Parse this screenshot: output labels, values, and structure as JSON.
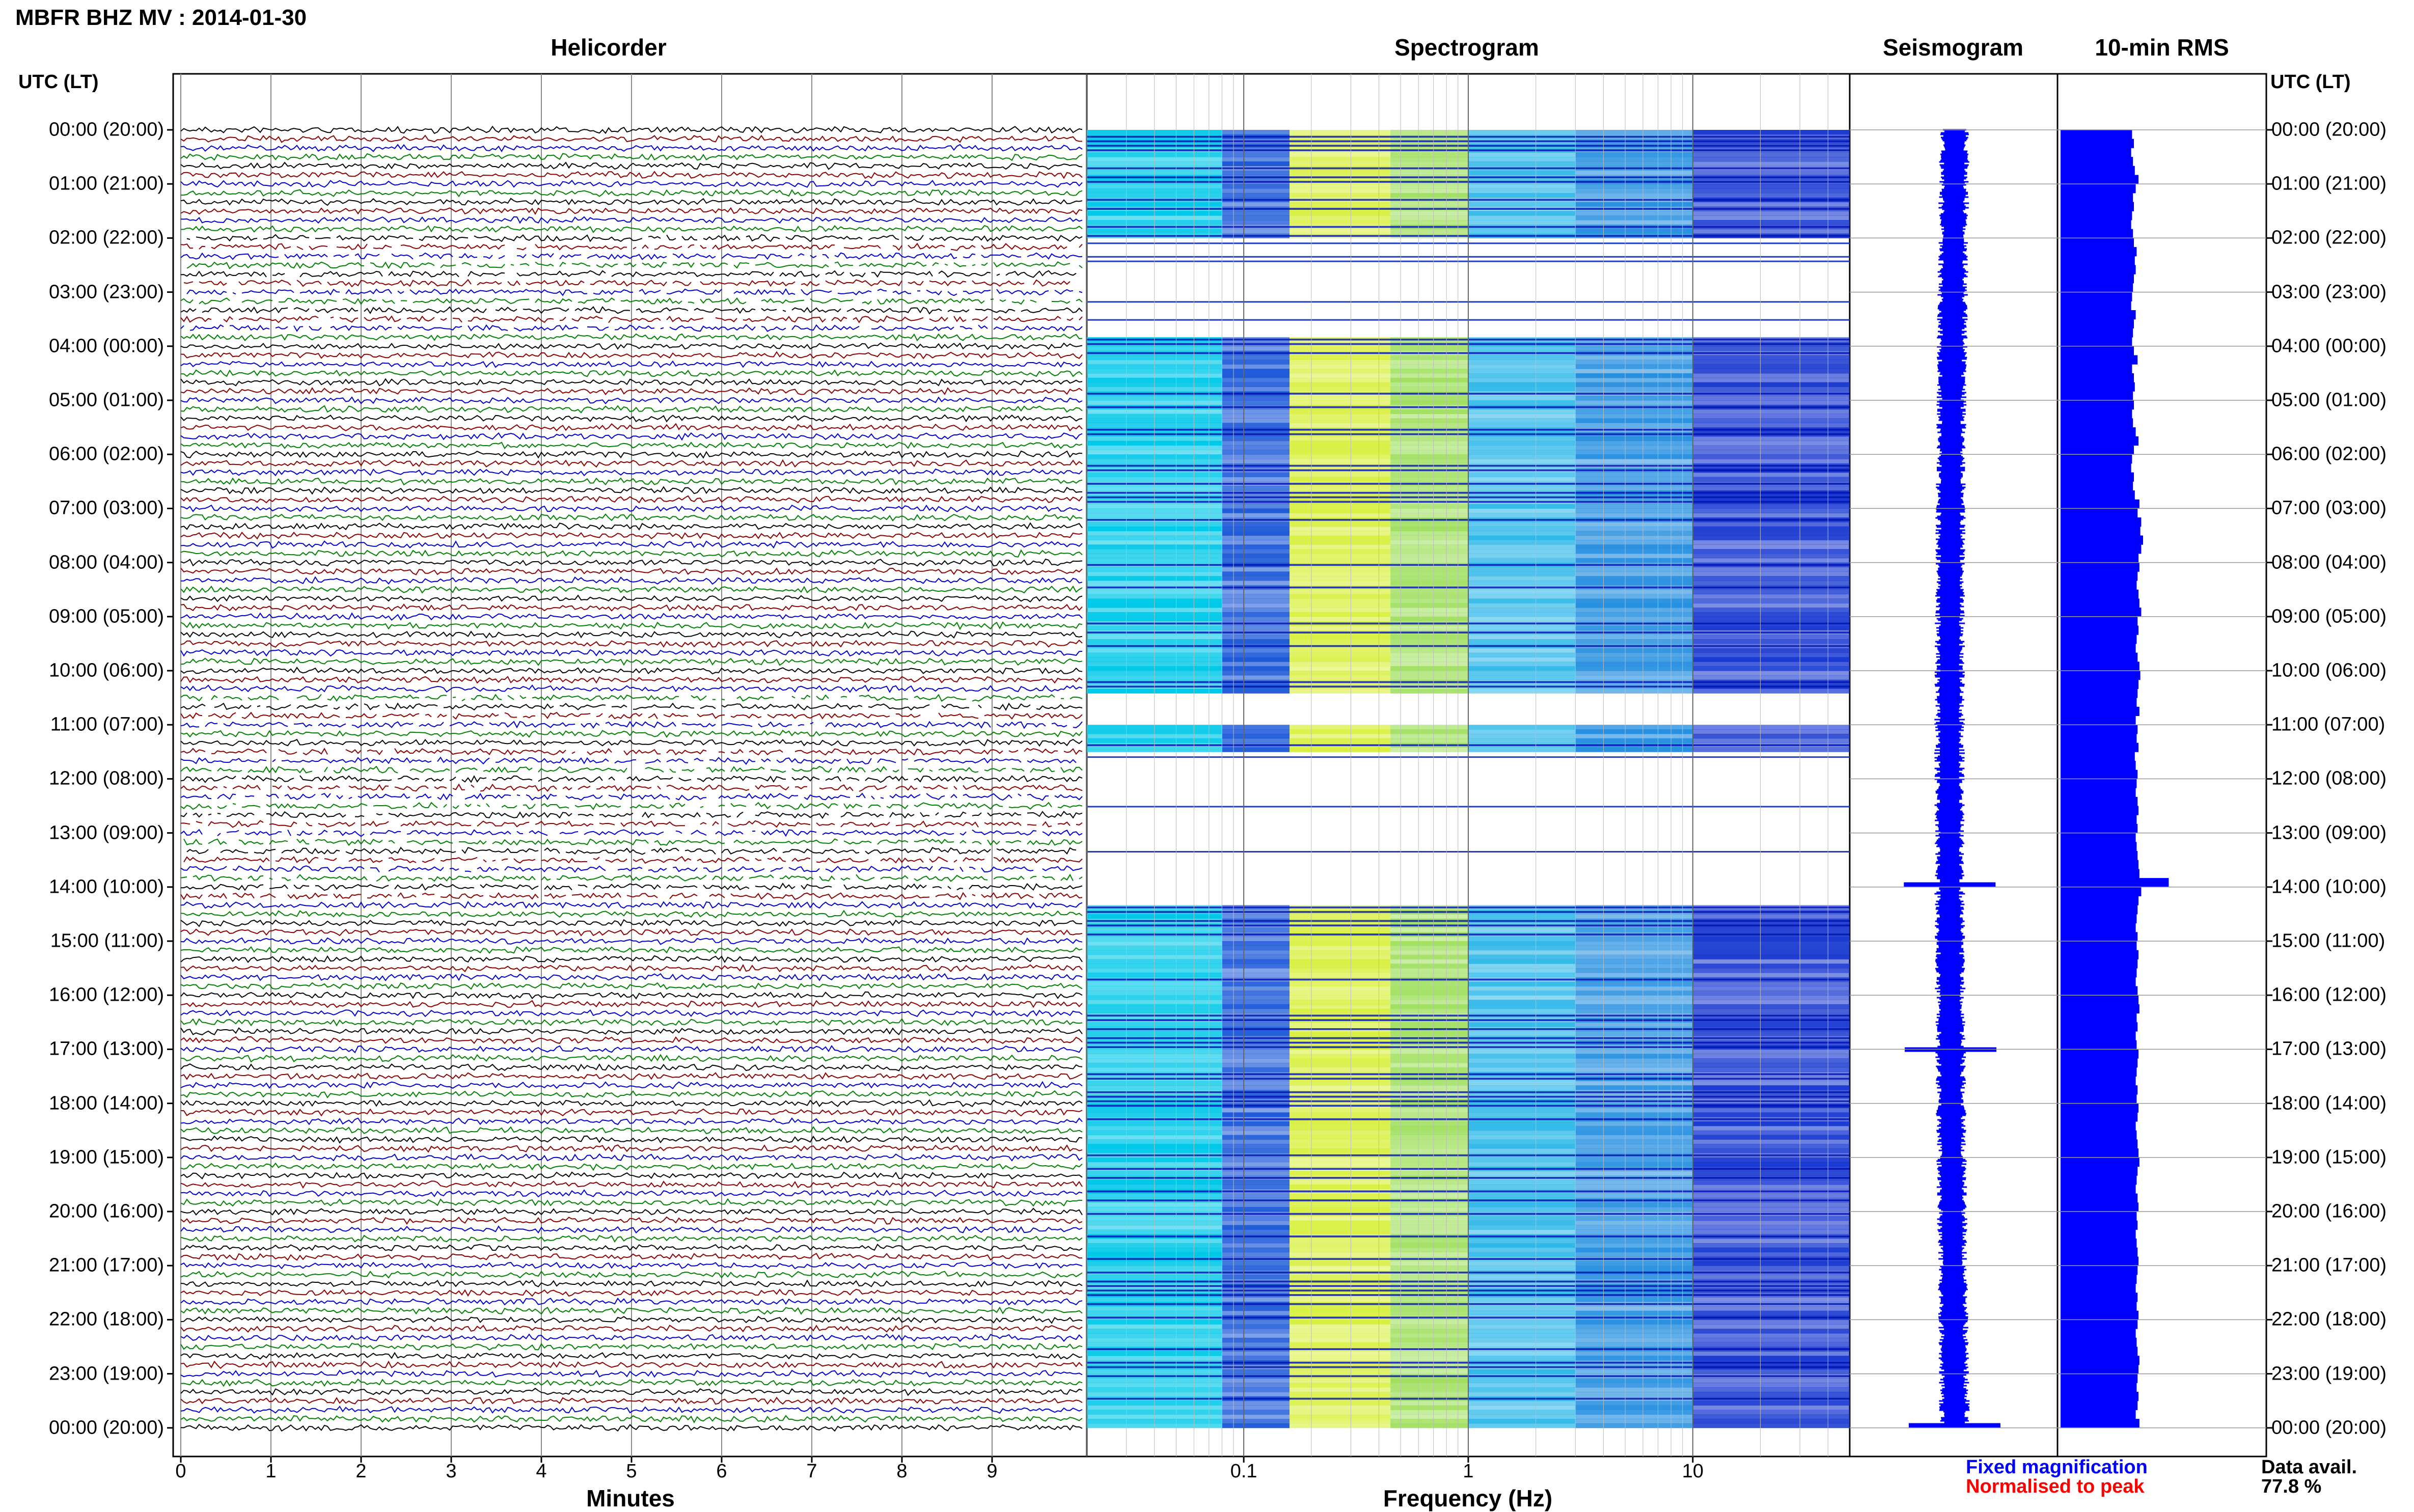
{
  "header": {
    "station": "MBFR BHZ MV : 2014-01-30",
    "panel_titles": [
      "Helicorder",
      "Spectrogram",
      "Seismogram",
      "10-min RMS"
    ],
    "time_axis_label_left": "UTC (LT)",
    "time_axis_label_right": "UTC (LT)"
  },
  "footer": {
    "xlabel_helicorder": "Minutes",
    "xlabel_spectrogram": "Frequency (Hz)",
    "legend_fixed": "Fixed magnification",
    "legend_normalised": "Normalised to peak",
    "data_avail_label": "Data avail.",
    "data_avail_value": "77.8 %"
  },
  "colors": {
    "trace_cycle": [
      "#000000",
      "#8b0000",
      "#0000cc",
      "#008000"
    ],
    "seismogram": "#0000ff",
    "rms": "#0000ff",
    "legend_fixed": "#0000ff",
    "legend_normalised": "#ff0000"
  },
  "chart_data": [
    {
      "type": "line",
      "title": "Helicorder",
      "xlabel": "Minutes",
      "x_ticks": [
        "0",
        "1",
        "2",
        "3",
        "4",
        "5",
        "6",
        "7",
        "8",
        "9"
      ],
      "xlim": [
        0,
        10
      ],
      "hour_labels": [
        "00:00 (20:00)",
        "01:00 (21:00)",
        "02:00 (22:00)",
        "03:00 (23:00)",
        "04:00 (00:00)",
        "05:00 (01:00)",
        "06:00 (02:00)",
        "07:00 (03:00)",
        "08:00 (04:00)",
        "09:00 (05:00)",
        "10:00 (06:00)",
        "11:00 (07:00)",
        "12:00 (08:00)",
        "13:00 (09:00)",
        "14:00 (10:00)",
        "15:00 (11:00)",
        "16:00 (12:00)",
        "17:00 (13:00)",
        "18:00 (14:00)",
        "19:00 (15:00)",
        "20:00 (16:00)",
        "21:00 (17:00)",
        "22:00 (18:00)",
        "23:00 (19:00)",
        "00:00 (20:00)"
      ],
      "traces_per_hour": 6,
      "grid": true
    },
    {
      "type": "heatmap",
      "title": "Spectrogram",
      "xlabel": "Frequency (Hz)",
      "x_scale": "log",
      "x_ticks": [
        "0.1",
        "1",
        "10"
      ],
      "xlim": [
        0.02,
        50
      ],
      "data_gaps_hours": [
        [
          2.0,
          3.8
        ],
        [
          10.4,
          11.0
        ],
        [
          11.5,
          14.3
        ]
      ]
    },
    {
      "type": "line",
      "title": "Seismogram",
      "events_hours": [
        13.95,
        17.0,
        23.95
      ]
    },
    {
      "type": "bar",
      "title": "10-min RMS",
      "orientation": "horizontal",
      "values_relative": [
        0.78,
        0.8,
        0.77,
        0.79,
        0.81,
        0.85,
        0.82,
        0.79,
        0.8,
        0.78,
        0.77,
        0.79,
        0.8,
        0.83,
        0.81,
        0.82,
        0.8,
        0.79,
        0.78,
        0.77,
        0.82,
        0.8,
        0.79,
        0.78,
        0.8,
        0.84,
        0.78,
        0.8,
        0.81,
        0.79,
        0.8,
        0.78,
        0.79,
        0.82,
        0.85,
        0.8,
        0.78,
        0.77,
        0.8,
        0.79,
        0.81,
        0.86,
        0.84,
        0.88,
        0.87,
        0.9,
        0.88,
        0.85,
        0.86,
        0.84,
        0.83,
        0.85,
        0.86,
        0.88,
        0.84,
        0.85,
        0.83,
        0.82,
        0.84,
        0.86,
        0.87,
        0.85,
        0.84,
        0.83,
        0.86,
        0.82,
        0.84,
        0.83,
        0.85,
        0.81,
        0.82,
        0.84,
        0.83,
        0.82,
        0.84,
        0.85,
        0.83,
        0.84,
        0.82,
        0.83,
        0.84,
        0.85,
        0.86,
        1.18,
        0.88,
        0.85,
        0.84,
        0.83,
        0.82,
        0.84,
        0.83,
        0.85,
        0.84,
        0.83,
        0.82,
        0.84,
        0.85,
        0.86,
        0.83,
        0.84,
        0.82,
        0.83,
        0.85,
        0.84,
        0.83,
        0.82,
        0.84,
        0.83,
        0.85,
        0.84,
        0.82,
        0.83,
        0.84,
        0.85,
        0.86,
        0.84,
        0.83,
        0.82,
        0.84,
        0.85,
        0.83,
        0.84,
        0.82,
        0.83,
        0.84,
        0.85,
        0.84,
        0.83,
        0.82,
        0.84,
        0.83,
        0.85,
        0.84,
        0.82,
        0.83,
        0.84,
        0.86,
        0.85,
        0.84,
        0.83,
        0.85,
        0.84,
        0.82,
        0.86
      ],
      "grid": true
    }
  ]
}
